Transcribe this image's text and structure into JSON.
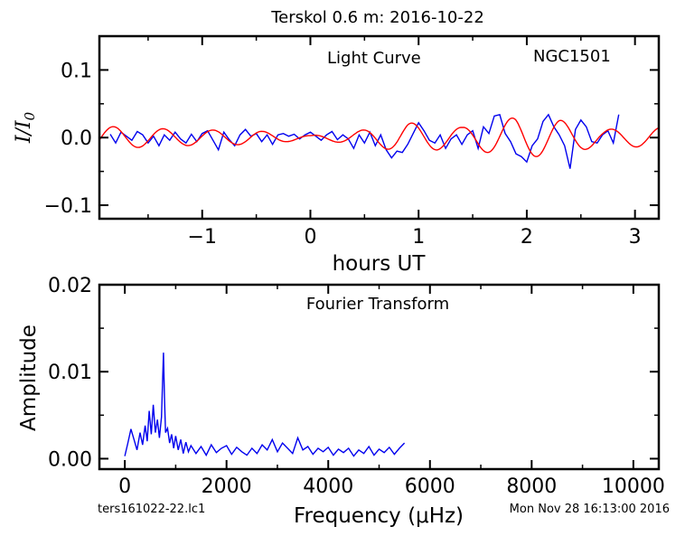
{
  "figure": {
    "title": "Terskol 0.6 m:  2016-10-22",
    "footer_left": "ters161022-22.lc1",
    "footer_right": "Mon Nov 28 16:13:00 2016",
    "colors": {
      "data": "#0000ee",
      "fit": "#ff0000",
      "axis": "#000000"
    }
  },
  "chart_data": [
    {
      "type": "line",
      "panel": "light-curve",
      "annotation_left": "Light Curve",
      "annotation_right": "NGC1501",
      "xlabel": "hours UT",
      "ylabel": "I/I0",
      "xlim": [
        -1.95,
        3.22
      ],
      "ylim": [
        -0.12,
        0.15
      ],
      "xticks": [
        -1,
        0,
        1,
        2,
        3
      ],
      "xtick_labels": [
        "−1",
        "0",
        "1",
        "2",
        "3"
      ],
      "yticks": [
        -0.1,
        0.0,
        0.1
      ],
      "ytick_labels": [
        "−0.1",
        "0.0",
        "0.1"
      ],
      "grid": false,
      "series": [
        {
          "style": "data",
          "color": "#0000ee",
          "x": [
            -1.85,
            -1.8,
            -1.75,
            -1.7,
            -1.65,
            -1.6,
            -1.55,
            -1.5,
            -1.45,
            -1.4,
            -1.35,
            -1.3,
            -1.25,
            -1.2,
            -1.15,
            -1.1,
            -1.05,
            -1.0,
            -0.95,
            -0.9,
            -0.85,
            -0.8,
            -0.75,
            -0.7,
            -0.65,
            -0.6,
            -0.55,
            -0.5,
            -0.45,
            -0.4,
            -0.35,
            -0.3,
            -0.25,
            -0.2,
            -0.15,
            -0.1,
            -0.05,
            0.0,
            0.05,
            0.1,
            0.15,
            0.2,
            0.25,
            0.3,
            0.35,
            0.4,
            0.45,
            0.5,
            0.55,
            0.6,
            0.65,
            0.7,
            0.75,
            0.8,
            0.85,
            0.9,
            0.95,
            1.0,
            1.05,
            1.1,
            1.15,
            1.2,
            1.25,
            1.3,
            1.35,
            1.4,
            1.45,
            1.5,
            1.55,
            1.6,
            1.65,
            1.7,
            1.75,
            1.8,
            1.85,
            1.9,
            1.95,
            2.0,
            2.05,
            2.1,
            2.15,
            2.2,
            2.25,
            2.3,
            2.35,
            2.4,
            2.45,
            2.5,
            2.55,
            2.6,
            2.65,
            2.7,
            2.75,
            2.8,
            2.85
          ],
          "y": [
            0.005,
            -0.008,
            0.008,
            0.002,
            -0.004,
            0.009,
            0.004,
            -0.008,
            0.002,
            -0.012,
            0.004,
            -0.004,
            0.008,
            -0.002,
            -0.008,
            0.005,
            -0.006,
            0.006,
            0.01,
            -0.004,
            -0.018,
            0.008,
            -0.003,
            -0.012,
            0.004,
            0.012,
            0.002,
            0.006,
            -0.006,
            0.004,
            -0.01,
            0.004,
            0.006,
            0.002,
            0.005,
            -0.002,
            0.004,
            0.008,
            0.002,
            -0.004,
            0.004,
            0.009,
            -0.003,
            0.004,
            -0.002,
            -0.016,
            0.004,
            -0.008,
            0.008,
            -0.012,
            0.004,
            -0.018,
            -0.03,
            -0.02,
            -0.022,
            -0.01,
            0.006,
            0.022,
            0.01,
            -0.004,
            -0.008,
            0.004,
            -0.016,
            -0.002,
            0.004,
            -0.01,
            0.004,
            0.01,
            -0.016,
            0.016,
            0.006,
            0.032,
            0.034,
            0.006,
            -0.006,
            -0.024,
            -0.028,
            -0.036,
            -0.012,
            -0.002,
            0.024,
            0.034,
            0.016,
            0.004,
            -0.012,
            -0.046,
            0.012,
            0.026,
            0.016,
            -0.006,
            -0.008,
            0.004,
            0.01,
            -0.008,
            0.034
          ]
        },
        {
          "style": "fit",
          "color": "#ff0000",
          "model": {
            "mean": 0.0,
            "period_hours": 0.46,
            "phase_hours": 0.02,
            "amplitude_envelope": {
              "x": [
                -1.95,
                -1.2,
                -0.5,
                0.0,
                0.4,
                0.9,
                1.4,
                1.9,
                2.3,
                2.7,
                3.22
              ],
              "amp": [
                0.017,
                0.012,
                0.01,
                0.003,
                0.009,
                0.022,
                0.015,
                0.03,
                0.026,
                0.012,
                0.015
              ]
            }
          }
        }
      ]
    },
    {
      "type": "line",
      "panel": "fourier-transform",
      "annotation": "Fourier Transform",
      "xlabel": "Frequency (μHz)",
      "ylabel": "Amplitude",
      "xlim": [
        -500,
        10500
      ],
      "ylim": [
        -0.0012,
        0.02
      ],
      "xticks": [
        0,
        2000,
        4000,
        6000,
        8000,
        10000
      ],
      "xtick_labels": [
        "0",
        "2000",
        "4000",
        "6000",
        "8000",
        "10000"
      ],
      "yticks": [
        0.0,
        0.01,
        0.02
      ],
      "ytick_labels": [
        "0.00",
        "0.01",
        "0.02"
      ],
      "grid": false,
      "series": [
        {
          "color": "#0000ee",
          "x": [
            0,
            60,
            120,
            180,
            240,
            300,
            350,
            400,
            440,
            480,
            520,
            560,
            600,
            640,
            680,
            720,
            740,
            760,
            780,
            800,
            840,
            880,
            920,
            960,
            1000,
            1050,
            1100,
            1150,
            1200,
            1250,
            1300,
            1400,
            1500,
            1600,
            1700,
            1800,
            1900,
            2000,
            2100,
            2200,
            2300,
            2400,
            2500,
            2600,
            2700,
            2800,
            2900,
            3000,
            3100,
            3200,
            3300,
            3400,
            3500,
            3600,
            3700,
            3800,
            3900,
            4000,
            4100,
            4200,
            4300,
            4400,
            4500,
            4600,
            4700,
            4800,
            4900,
            5000,
            5100,
            5200,
            5300,
            5400,
            5500
          ],
          "y": [
            0.0003,
            0.0018,
            0.0034,
            0.0022,
            0.001,
            0.003,
            0.0016,
            0.0038,
            0.002,
            0.0055,
            0.0028,
            0.0062,
            0.003,
            0.0045,
            0.0024,
            0.0048,
            0.0085,
            0.0122,
            0.007,
            0.003,
            0.0035,
            0.0018,
            0.0028,
            0.0012,
            0.0026,
            0.001,
            0.0022,
            0.0006,
            0.0019,
            0.0008,
            0.0015,
            0.0006,
            0.0014,
            0.0004,
            0.0016,
            0.0007,
            0.0012,
            0.0015,
            0.0005,
            0.0013,
            0.0008,
            0.0004,
            0.0012,
            0.0006,
            0.0016,
            0.001,
            0.0022,
            0.0008,
            0.0018,
            0.0012,
            0.0006,
            0.0024,
            0.001,
            0.0014,
            0.0005,
            0.0012,
            0.0008,
            0.0013,
            0.0004,
            0.0011,
            0.0007,
            0.0012,
            0.0003,
            0.001,
            0.0006,
            0.0014,
            0.0004,
            0.0011,
            0.0007,
            0.0013,
            0.0005,
            0.0012,
            0.0018
          ]
        }
      ]
    }
  ]
}
